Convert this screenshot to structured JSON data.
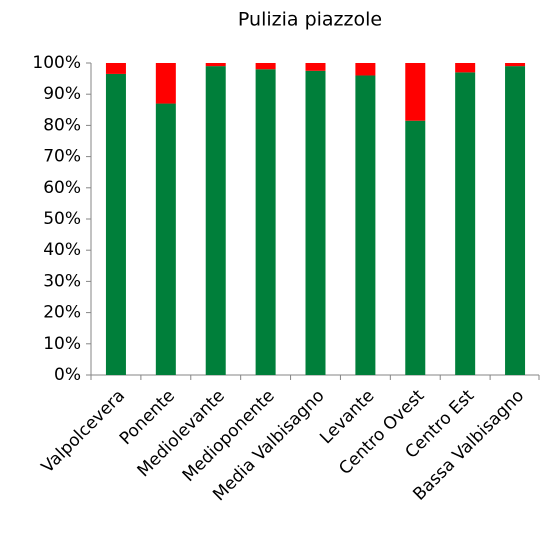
{
  "chart_data": {
    "type": "stacked_bar",
    "title": "Pulizia piazzole",
    "categories": [
      "Valpolcevera",
      "Ponente",
      "Mediolevante",
      "Medioponente",
      "Media Valbisagno",
      "Levante",
      "Centro Ovest",
      "Centro Est",
      "Bassa Valbisagno"
    ],
    "series": [
      {
        "color": "#007f3a",
        "values": [
          96.5,
          87,
          99,
          98,
          97.5,
          96,
          81.5,
          97,
          99
        ]
      },
      {
        "color": "#ff0000",
        "values": [
          3.5,
          13,
          1,
          2,
          2.5,
          4,
          18.5,
          3,
          1
        ]
      }
    ],
    "ylim": [
      0,
      100
    ],
    "yticks": [
      {
        "value": 0,
        "label": "0%"
      },
      {
        "value": 10,
        "label": "10%"
      },
      {
        "value": 20,
        "label": "20%"
      },
      {
        "value": 30,
        "label": "30%"
      },
      {
        "value": 40,
        "label": "40%"
      },
      {
        "value": 50,
        "label": "50%"
      },
      {
        "value": 60,
        "label": "60%"
      },
      {
        "value": 70,
        "label": "70%"
      },
      {
        "value": 80,
        "label": "80%"
      },
      {
        "value": 90,
        "label": "90%"
      },
      {
        "value": 100,
        "label": "100%"
      }
    ],
    "grid": false
  }
}
